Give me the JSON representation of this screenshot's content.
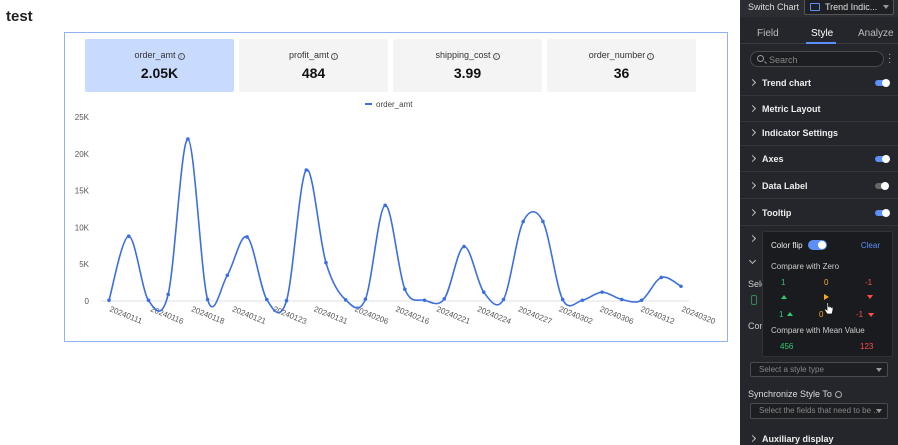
{
  "page": {
    "title": "test"
  },
  "metrics": [
    {
      "label": "order_amt",
      "value": "2.05K",
      "active": true
    },
    {
      "label": "profit_amt",
      "value": "484",
      "active": false
    },
    {
      "label": "shipping_cost",
      "value": "3.99",
      "active": false
    },
    {
      "label": "order_number",
      "value": "36",
      "active": false
    }
  ],
  "chart_data": {
    "type": "line",
    "legend_position": "top-center",
    "series": [
      {
        "name": "order_amt",
        "color": "#3b6fe0",
        "values": [
          100,
          8800,
          100,
          900,
          22000,
          200,
          3500,
          8700,
          200,
          50,
          17800,
          5200,
          150,
          250,
          13000,
          1600,
          100,
          300,
          7400,
          1200,
          200,
          10800,
          10800,
          200,
          100,
          1200,
          200,
          100,
          3200,
          2000
        ]
      }
    ],
    "x_tick_labels": [
      "20240111",
      "20240116",
      "20240118",
      "20240121",
      "20240123",
      "20240131",
      "20240206",
      "20240216",
      "20240221",
      "20240224",
      "20240227",
      "20240302",
      "20240306",
      "20240312",
      "20240320"
    ],
    "y_ticks": [
      0,
      5000,
      10000,
      15000,
      20000,
      25000
    ],
    "y_tick_labels": [
      "0",
      "5K",
      "10K",
      "15K",
      "20K",
      "25K"
    ],
    "ylim": [
      0,
      25000
    ],
    "grid": false
  },
  "panel": {
    "switch_label": "Switch Chart",
    "switch_value": "Trend Indic...",
    "tabs": [
      "Field",
      "Style",
      "Analyze"
    ],
    "active_tab": "Style",
    "search_placeholder": "Search",
    "sections": [
      {
        "label": "Trend chart",
        "toggle": "on"
      },
      {
        "label": "Metric Layout",
        "toggle": "none"
      },
      {
        "label": "Indicator Settings",
        "toggle": "none"
      },
      {
        "label": "Axes",
        "toggle": "on"
      },
      {
        "label": "Data Label",
        "toggle": "off"
      },
      {
        "label": "Tooltip",
        "toggle": "on"
      }
    ],
    "partial_labels": [
      "Sele",
      "Con"
    ],
    "style_type_placeholder": "Select a style type",
    "sync_label": "Synchronize Style To",
    "sync_placeholder": "Select the fields that need to be ...",
    "auxiliary_label": "Auxiliary display"
  },
  "popover": {
    "color_flip_label": "Color flip",
    "clear_label": "Clear",
    "zero_heading": "Compare with Zero",
    "zero_row1": [
      "1",
      "0",
      "-1"
    ],
    "zero_row3": [
      "1",
      "0",
      "-1"
    ],
    "mean_heading": "Compare with Mean Value",
    "mean_values": [
      "456",
      "123"
    ],
    "colors": {
      "positive": "#2ecc71",
      "neutral": "#f5a623",
      "negative": "#ff4d4f"
    }
  }
}
